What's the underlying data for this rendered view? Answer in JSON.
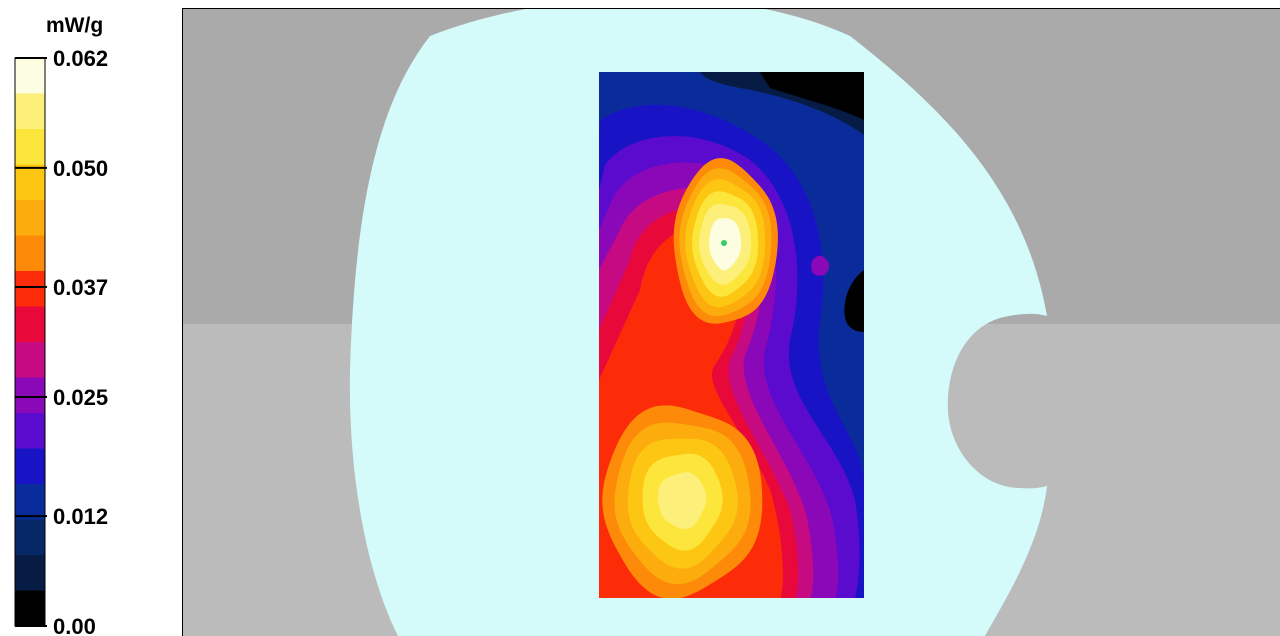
{
  "chart_data": {
    "type": "heatmap",
    "title": "",
    "colorbar": {
      "unit": "mW/g",
      "tick_labels": [
        "0.062",
        "0.050",
        "0.037",
        "0.025",
        "0.012",
        "0.00"
      ],
      "ticks": [
        0.062,
        0.05,
        0.037,
        0.025,
        0.012,
        0.0
      ],
      "range": [
        0.0,
        0.062
      ],
      "levels": 16,
      "colors": [
        "#fdfde2",
        "#fdf07a",
        "#fde63c",
        "#fdc612",
        "#fdac0d",
        "#fd8a08",
        "#fc2b08",
        "#e8093a",
        "#c60a82",
        "#8a08b8",
        "#5a0bce",
        "#1913c6",
        "#0a2c9a",
        "#062866",
        "#061c44",
        "#000000"
      ]
    },
    "scan_area": {
      "peaks": [
        {
          "location": "upper",
          "value": 0.062
        },
        {
          "location": "lower",
          "value": 0.05
        }
      ]
    },
    "background_colors": {
      "phantom": "#d4fafa",
      "outside": "#b4b4b4",
      "divider_top": "#aaaaaa",
      "divider_bottom": "#bbbbbb"
    }
  }
}
